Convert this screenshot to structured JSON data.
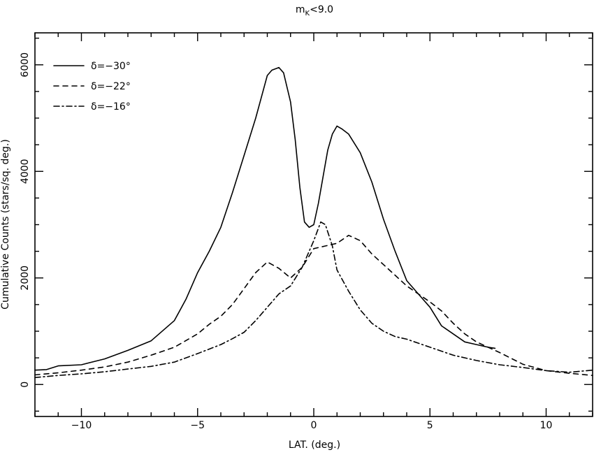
{
  "chart_data": {
    "type": "line",
    "title_main": "m",
    "title_sub": "K",
    "title_rest": "<9.0",
    "xlabel": "LAT. (deg.)",
    "ylabel": "Cumulative Counts (stars/sq. deg.)",
    "xlim": [
      -12,
      12
    ],
    "ylim": [
      -600,
      6600
    ],
    "xticks": [
      -10,
      -5,
      0,
      5,
      10
    ],
    "xtick_labels": [
      "−10",
      "−5",
      "0",
      "5",
      "10"
    ],
    "yticks": [
      0,
      2000,
      4000,
      6000
    ],
    "ytick_labels": [
      "0",
      "2000",
      "4000",
      "6000"
    ],
    "grid": false,
    "legend_position": "top-left",
    "series": [
      {
        "name": "δ=−30°",
        "dash": "",
        "x": [
          -12,
          -11.5,
          -11,
          -10,
          -9,
          -8,
          -7,
          -6,
          -5.5,
          -5,
          -4.5,
          -4,
          -3.5,
          -3,
          -2.5,
          -2,
          -1.8,
          -1.5,
          -1.3,
          -1,
          -0.8,
          -0.6,
          -0.4,
          -0.2,
          0,
          0.2,
          0.4,
          0.6,
          0.8,
          1,
          1.2,
          1.5,
          2,
          2.5,
          3,
          3.5,
          4,
          4.5,
          5,
          5.5,
          6,
          6.5,
          7,
          7.5,
          7.8
        ],
        "y": [
          270,
          280,
          350,
          370,
          480,
          640,
          820,
          1200,
          1600,
          2100,
          2500,
          2950,
          3600,
          4300,
          5000,
          5800,
          5900,
          5950,
          5850,
          5300,
          4600,
          3700,
          3050,
          2950,
          3000,
          3400,
          3900,
          4400,
          4700,
          4850,
          4800,
          4700,
          4350,
          3800,
          3100,
          2500,
          1950,
          1700,
          1450,
          1100,
          950,
          800,
          750,
          700,
          680
        ]
      },
      {
        "name": "δ=−22°",
        "dash": "7 6",
        "x": [
          -12,
          -11,
          -10,
          -9,
          -8,
          -7,
          -6,
          -5,
          -4.5,
          -4,
          -3.5,
          -3,
          -2.5,
          -2,
          -1.5,
          -1,
          -0.5,
          0,
          0.5,
          1,
          1.5,
          2,
          2.5,
          3,
          3.5,
          4,
          4.5,
          5,
          5.5,
          6,
          6.5,
          7,
          7.5,
          8,
          9,
          10,
          11,
          12
        ],
        "y": [
          180,
          220,
          270,
          330,
          420,
          550,
          700,
          950,
          1130,
          1280,
          1500,
          1800,
          2100,
          2300,
          2180,
          2000,
          2200,
          2550,
          2600,
          2650,
          2800,
          2700,
          2450,
          2250,
          2050,
          1850,
          1700,
          1550,
          1380,
          1150,
          950,
          800,
          700,
          600,
          380,
          260,
          210,
          170
        ]
      },
      {
        "name": "δ=−16°",
        "dash": "8 4 2 4",
        "x": [
          -12,
          -11,
          -10,
          -9,
          -8,
          -7,
          -6,
          -5,
          -4,
          -3.5,
          -3,
          -2.5,
          -2,
          -1.5,
          -1,
          -0.5,
          0,
          0.3,
          0.5,
          0.8,
          1,
          1.5,
          2,
          2.5,
          3,
          3.5,
          4,
          5,
          6,
          7,
          8,
          9,
          10,
          11,
          12
        ],
        "y": [
          130,
          170,
          200,
          240,
          290,
          340,
          420,
          580,
          750,
          860,
          980,
          1200,
          1450,
          1700,
          1850,
          2200,
          2700,
          3050,
          3000,
          2600,
          2150,
          1750,
          1400,
          1150,
          1000,
          900,
          850,
          700,
          550,
          450,
          370,
          320,
          260,
          230,
          270
        ]
      }
    ]
  }
}
